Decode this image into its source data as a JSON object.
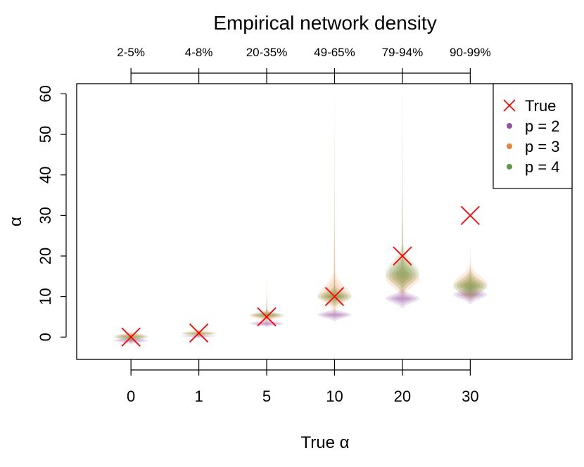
{
  "chart_data": {
    "type": "violin",
    "title": "Empirical network density",
    "xlabel": "True α",
    "ylabel": "α",
    "categories": [
      "0",
      "1",
      "5",
      "10",
      "20",
      "30"
    ],
    "density_labels": [
      "2-5%",
      "4-8%",
      "20-35%",
      "49-65%",
      "79-94%",
      "90-99%"
    ],
    "true_values": [
      0,
      1,
      5,
      10,
      20,
      30
    ],
    "yticks": [
      "0",
      "10",
      "20",
      "30",
      "40",
      "50",
      "60"
    ],
    "ylim": [
      -5.5,
      62.5
    ],
    "xlim": [
      0.2,
      7.5
    ],
    "legend_position": "top-right",
    "legend": [
      "True",
      "p = 2",
      "p = 3",
      "p = 4"
    ],
    "colors": {
      "true": "#ff0000",
      "p2": "#984ea3",
      "p3": "#e6863c",
      "p4": "#5e9a48"
    },
    "series": [
      {
        "name": "p = 2",
        "color": "#984ea3",
        "distributions": [
          {
            "median": -0.8,
            "q1": -1.3,
            "q3": -0.3,
            "min": -1.8,
            "max": 0.2
          },
          {
            "median": 0.3,
            "q1": 0.0,
            "q3": 0.6,
            "min": -0.3,
            "max": 0.8
          },
          {
            "median": 3.3,
            "q1": 2.9,
            "q3": 3.8,
            "min": 2.4,
            "max": 4.5
          },
          {
            "median": 5.5,
            "q1": 4.8,
            "q3": 6.2,
            "min": 3.8,
            "max": 7.0
          },
          {
            "median": 9.5,
            "q1": 8.5,
            "q3": 10.5,
            "min": 7.0,
            "max": 12.0
          },
          {
            "median": 10.5,
            "q1": 9.5,
            "q3": 11.5,
            "min": 8.0,
            "max": 13.0
          }
        ]
      },
      {
        "name": "p = 3",
        "color": "#e6863c",
        "distributions": [
          {
            "median": 0.3,
            "q1": -0.3,
            "q3": 0.8,
            "min": -1.5,
            "max": 1.5
          },
          {
            "median": 1.0,
            "q1": 0.6,
            "q3": 1.4,
            "min": 0.2,
            "max": 2.0
          },
          {
            "median": 5.2,
            "q1": 4.6,
            "q3": 5.8,
            "min": 3.5,
            "max": 14.5
          },
          {
            "median": 10.0,
            "q1": 8.5,
            "q3": 12.5,
            "min": 5.5,
            "max": 62.0
          },
          {
            "median": 14.5,
            "q1": 12.5,
            "q3": 17.5,
            "min": 9.5,
            "max": 35.0
          },
          {
            "median": 13.0,
            "q1": 11.0,
            "q3": 15.0,
            "min": 9.0,
            "max": 22.0
          }
        ]
      },
      {
        "name": "p = 4",
        "color": "#5e9a48",
        "distributions": [
          {
            "median": 0.0,
            "q1": -0.5,
            "q3": 0.5,
            "min": -1.2,
            "max": 1.0
          },
          {
            "median": 0.8,
            "q1": 0.5,
            "q3": 1.1,
            "min": 0.2,
            "max": 1.5
          },
          {
            "median": 5.5,
            "q1": 5.0,
            "q3": 6.0,
            "min": 4.2,
            "max": 9.0
          },
          {
            "median": 10.0,
            "q1": 9.0,
            "q3": 11.0,
            "min": 7.5,
            "max": 16.0
          },
          {
            "median": 15.5,
            "q1": 13.5,
            "q3": 18.5,
            "min": 10.5,
            "max": 62.0
          },
          {
            "median": 12.5,
            "q1": 11.0,
            "q3": 14.0,
            "min": 9.5,
            "max": 17.0
          }
        ]
      }
    ]
  }
}
